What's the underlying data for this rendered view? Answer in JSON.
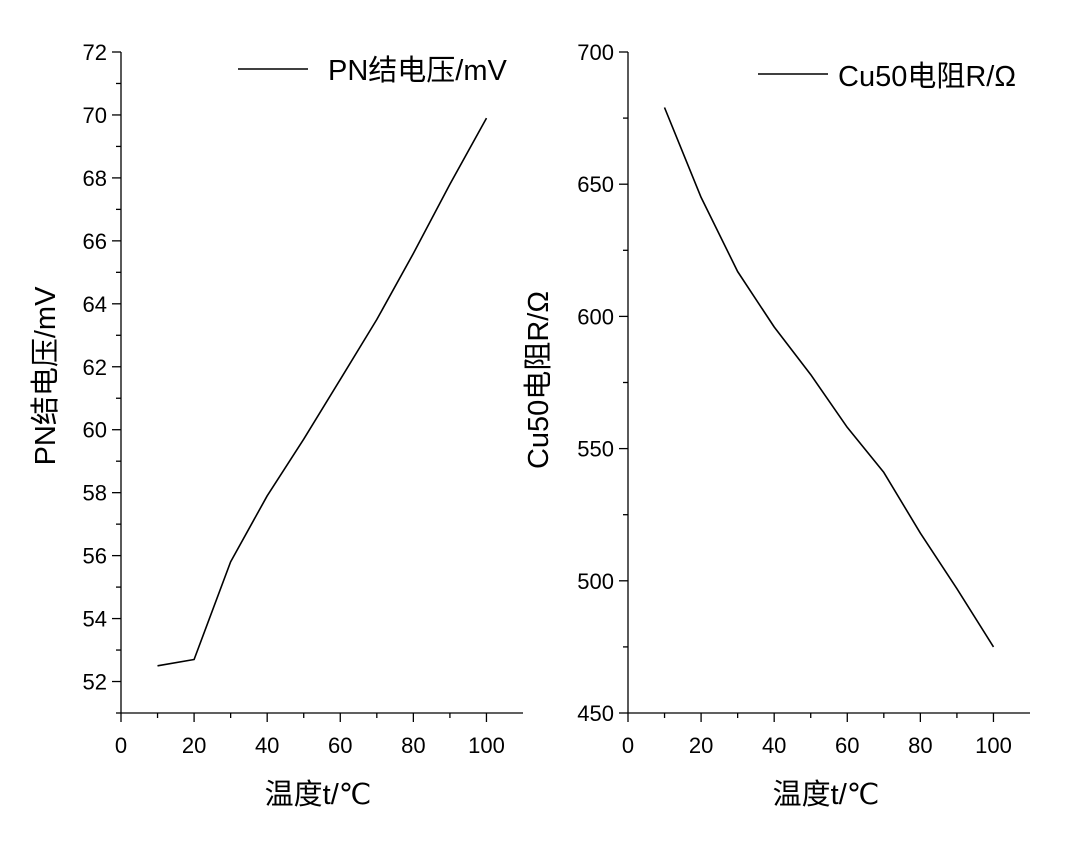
{
  "chart_data": [
    {
      "type": "line",
      "xlabel": "温度t/℃",
      "ylabel": "PN结电压/mV",
      "xlim": [
        0,
        110
      ],
      "ylim": [
        51,
        72
      ],
      "xticks": [
        0,
        20,
        40,
        60,
        80,
        100
      ],
      "xtick_labels": [
        "0",
        "20",
        "40",
        "60",
        "80",
        "100"
      ],
      "yticks": [
        52,
        54,
        56,
        58,
        60,
        62,
        64,
        66,
        68,
        70,
        72
      ],
      "ytick_labels": [
        "52",
        "54",
        "56",
        "58",
        "60",
        "62",
        "64",
        "66",
        "68",
        "70",
        "72"
      ],
      "grid": false,
      "legend": "top-right",
      "series": [
        {
          "name": "PN结电压/mV",
          "color": "#000000",
          "x": [
            10,
            20,
            30,
            40,
            50,
            60,
            70,
            80,
            90,
            100
          ],
          "y": [
            52.5,
            52.7,
            55.8,
            57.9,
            59.7,
            61.6,
            63.5,
            65.6,
            67.8,
            69.9
          ]
        }
      ]
    },
    {
      "type": "line",
      "xlabel": "温度t/℃",
      "ylabel": "Cu50电阻R/Ω",
      "xlim": [
        0,
        110
      ],
      "ylim": [
        450,
        700
      ],
      "xticks": [
        0,
        20,
        40,
        60,
        80,
        100
      ],
      "xtick_labels": [
        "0",
        "20",
        "40",
        "60",
        "80",
        "100"
      ],
      "yticks": [
        450,
        500,
        550,
        600,
        650,
        700
      ],
      "ytick_labels": [
        "450",
        "500",
        "550",
        "600",
        "650",
        "700"
      ],
      "grid": false,
      "legend": "top-right",
      "series": [
        {
          "name": "Cu50电阻R/Ω",
          "color": "#000000",
          "x": [
            10,
            20,
            30,
            40,
            50,
            60,
            70,
            80,
            90,
            100
          ],
          "y": [
            679,
            645,
            617,
            596,
            578,
            558,
            541,
            518,
            497,
            475
          ]
        }
      ]
    }
  ]
}
